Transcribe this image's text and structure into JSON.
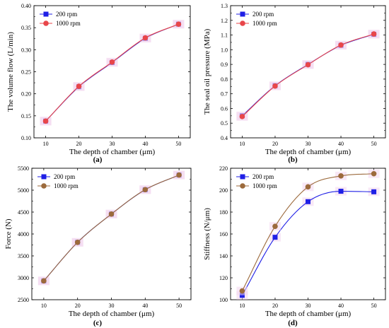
{
  "chart_data": [
    {
      "type": "line",
      "panel_label": "(a)",
      "xlabel": "The depth of chamber (μm)",
      "ylabel": "The volume flow (L/min)",
      "x": [
        10,
        20,
        30,
        40,
        50
      ],
      "xticks": [
        "10",
        "20",
        "30",
        "40",
        "50"
      ],
      "ylim": [
        0.1,
        0.4
      ],
      "yticks": [
        "0.10",
        "0.15",
        "0.20",
        "0.25",
        "0.30",
        "0.35",
        "0.40"
      ],
      "legend_position": "top-left",
      "series": [
        {
          "name": "200 rpm",
          "values": [
            0.138,
            0.216,
            0.271,
            0.326,
            0.358
          ],
          "color": "#1f1fe6",
          "marker": "square"
        },
        {
          "name": "1000 rpm",
          "values": [
            0.138,
            0.217,
            0.272,
            0.327,
            0.358
          ],
          "color": "#e8464a",
          "marker": "circle"
        }
      ]
    },
    {
      "type": "line",
      "panel_label": "(b)",
      "xlabel": "The depth of chamber (μm)",
      "ylabel": "The seal oil pressure (MPa)",
      "x": [
        10,
        20,
        30,
        40,
        50
      ],
      "xticks": [
        "10",
        "20",
        "30",
        "40",
        "50"
      ],
      "ylim": [
        0.4,
        1.3
      ],
      "yticks": [
        "0.4",
        "0.5",
        "0.6",
        "0.7",
        "0.8",
        "0.9",
        "1.0",
        "1.1",
        "1.2",
        "1.3"
      ],
      "legend_position": "top-left",
      "series": [
        {
          "name": "200 rpm",
          "values": [
            0.55,
            0.755,
            0.9,
            1.03,
            1.105
          ],
          "color": "#1f1fe6",
          "marker": "square"
        },
        {
          "name": "1000 rpm",
          "values": [
            0.545,
            0.753,
            0.898,
            1.032,
            1.107
          ],
          "color": "#e8464a",
          "marker": "circle"
        }
      ]
    },
    {
      "type": "line",
      "panel_label": "(c)",
      "xlabel": "The depth of chamber (μm)",
      "ylabel": "Force  (N)",
      "x": [
        10,
        20,
        30,
        40,
        50
      ],
      "xticks": [
        "10",
        "20",
        "30",
        "40",
        "50"
      ],
      "ylim": [
        2500,
        5500
      ],
      "yticks": [
        "2500",
        "3000",
        "3500",
        "4000",
        "4500",
        "5000",
        "5500"
      ],
      "legend_position": "top-left",
      "series": [
        {
          "name": "200 rpm",
          "values": [
            2930,
            3810,
            4455,
            5010,
            5345
          ],
          "color": "#1f1fe6",
          "marker": "square"
        },
        {
          "name": "1000 rpm",
          "values": [
            2930,
            3810,
            4455,
            5012,
            5345
          ],
          "color": "#9c6a3c",
          "marker": "circle"
        }
      ]
    },
    {
      "type": "line",
      "panel_label": "(d)",
      "xlabel": "The depth of chamber (μm)",
      "ylabel": "Stiffness (N/μm)",
      "x": [
        10,
        20,
        30,
        40,
        50
      ],
      "xticks": [
        "10",
        "20",
        "30",
        "40",
        "50"
      ],
      "ylim": [
        100,
        220
      ],
      "yticks": [
        "100",
        "120",
        "140",
        "160",
        "180",
        "200",
        "220"
      ],
      "legend_position": "top-left",
      "series": [
        {
          "name": "200 rpm",
          "values": [
            104,
            157,
            189.5,
            199,
            198.5
          ],
          "color": "#1f1fe6",
          "marker": "square"
        },
        {
          "name": "1000 rpm",
          "values": [
            108,
            167,
            203,
            213,
            215
          ],
          "color": "#9c6a3c",
          "marker": "circle"
        }
      ]
    }
  ]
}
